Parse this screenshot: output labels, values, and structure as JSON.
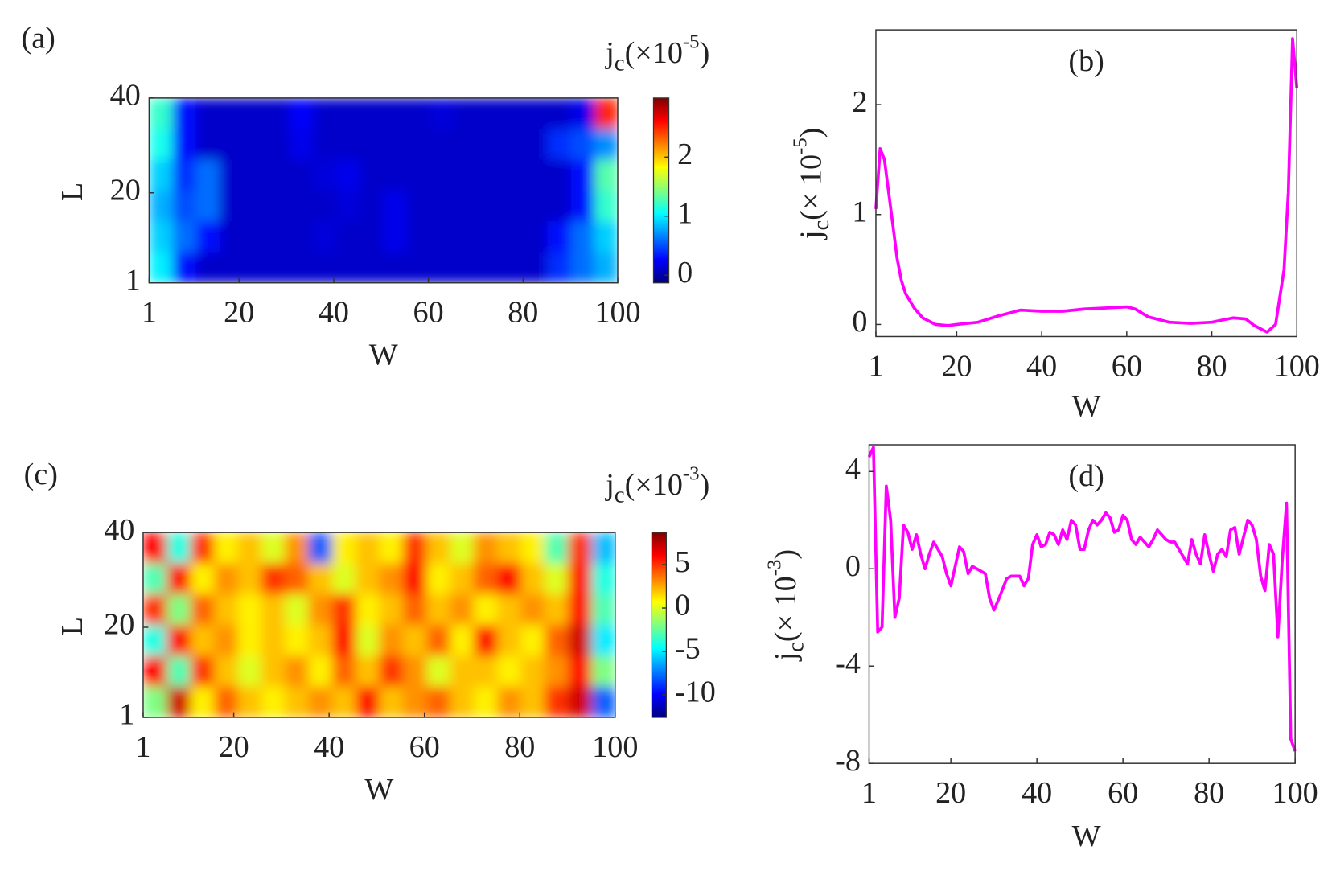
{
  "chart_data": [
    {
      "type": "heatmap",
      "panel_label": "(a)",
      "xlabel": "W",
      "ylabel": "L",
      "colorbar_label": {
        "base": "j",
        "sub": "c",
        "main": "(×10",
        "sup": "-5",
        "end": ")"
      },
      "xlim": [
        1,
        100
      ],
      "xticks": [
        1,
        20,
        40,
        60,
        80,
        100
      ],
      "ylim": [
        1,
        40
      ],
      "yticks": [
        1,
        20,
        40
      ],
      "clim": [
        -0.13,
        3.0
      ],
      "cticks": [
        0,
        1,
        2
      ],
      "colormap": "jet",
      "z": [
        [
          1.2,
          0.3,
          0.1,
          0.1,
          0.1,
          0.1,
          0.25,
          0.1,
          0.1,
          0.1,
          0.1,
          0.1,
          0.15,
          0.1,
          0.1,
          0.1,
          0.1,
          0.1,
          0.2,
          2.5
        ],
        [
          1.1,
          0.3,
          0.1,
          0.1,
          0.1,
          0.1,
          0.2,
          0.1,
          0.1,
          0.1,
          0.1,
          0.1,
          0.1,
          0.1,
          0.1,
          0.1,
          0.1,
          0.4,
          0.5,
          0.7
        ],
        [
          0.9,
          0.4,
          0.6,
          0.1,
          0.1,
          0.1,
          0.1,
          0.15,
          0.2,
          0.1,
          0.1,
          0.1,
          0.1,
          0.1,
          0.1,
          0.1,
          0.1,
          0.1,
          0.3,
          1.3
        ],
        [
          0.8,
          0.5,
          0.6,
          0.1,
          0.1,
          0.1,
          0.1,
          0.1,
          0.15,
          0.1,
          0.2,
          0.1,
          0.1,
          0.1,
          0.1,
          0.1,
          0.1,
          0.1,
          0.3,
          1.2
        ],
        [
          0.9,
          0.6,
          0.3,
          0.1,
          0.1,
          0.1,
          0.1,
          0.15,
          0.1,
          0.1,
          0.2,
          0.1,
          0.1,
          0.1,
          0.1,
          0.1,
          0.1,
          0.3,
          0.6,
          0.9
        ],
        [
          1.0,
          0.3,
          0.1,
          0.1,
          0.1,
          0.1,
          0.1,
          0.1,
          0.1,
          0.1,
          0.1,
          0.1,
          0.1,
          0.1,
          0.1,
          0.1,
          0.1,
          0.4,
          0.6,
          0.8
        ]
      ]
    },
    {
      "type": "line",
      "panel_label": "(b)",
      "xlabel": "W",
      "ylabel": {
        "base": "j",
        "sub": "c",
        "main": "(× 10",
        "sup": "-5",
        "end": ")"
      },
      "xlim": [
        1,
        100
      ],
      "xticks": [
        1,
        20,
        40,
        60,
        80,
        100
      ],
      "ylim": [
        -0.11,
        2.68
      ],
      "yticks": [
        0,
        1,
        2
      ],
      "color": "#ff00ff",
      "x": [
        1,
        2,
        3,
        4,
        5,
        6,
        7,
        8,
        10,
        12,
        15,
        18,
        20,
        25,
        30,
        35,
        40,
        45,
        50,
        55,
        60,
        62,
        65,
        70,
        75,
        80,
        85,
        88,
        90,
        93,
        95,
        97,
        98,
        99,
        100
      ],
      "values": [
        1.05,
        1.6,
        1.5,
        1.2,
        0.9,
        0.6,
        0.4,
        0.28,
        0.15,
        0.06,
        0.0,
        -0.01,
        0.0,
        0.02,
        0.08,
        0.13,
        0.12,
        0.12,
        0.14,
        0.15,
        0.16,
        0.14,
        0.07,
        0.02,
        0.01,
        0.02,
        0.06,
        0.05,
        -0.01,
        -0.07,
        0.0,
        0.5,
        1.2,
        2.6,
        2.15
      ]
    },
    {
      "type": "heatmap",
      "panel_label": "(c)",
      "xlabel": "W",
      "ylabel": "L",
      "colorbar_label": {
        "base": "j",
        "sub": "c",
        "main": "(×10",
        "sup": "-3",
        "end": ")"
      },
      "xlim": [
        1,
        100
      ],
      "xticks": [
        1,
        20,
        40,
        60,
        80,
        100
      ],
      "ylim": [
        1,
        40
      ],
      "yticks": [
        1,
        20,
        40
      ],
      "clim": [
        -12.6,
        8.7
      ],
      "cticks": [
        5,
        0,
        -5,
        -10
      ],
      "colormap": "jet",
      "z": [
        [
          6,
          -4,
          5,
          1,
          2,
          0,
          3,
          -8,
          1,
          2,
          1,
          5,
          2,
          0,
          3,
          2,
          1,
          -3,
          5,
          -6
        ],
        [
          -3,
          6,
          1,
          3,
          2,
          5,
          4,
          2,
          0,
          2,
          3,
          6,
          1,
          2,
          4,
          6,
          2,
          0,
          6,
          -4
        ],
        [
          5,
          -2,
          4,
          2,
          1,
          2,
          0,
          3,
          5,
          1,
          2,
          4,
          2,
          3,
          1,
          2,
          3,
          2,
          6,
          -3
        ],
        [
          -4,
          6,
          2,
          3,
          1,
          2,
          1,
          2,
          6,
          0,
          3,
          2,
          4,
          1,
          6,
          2,
          1,
          4,
          7,
          -5
        ],
        [
          6,
          -3,
          5,
          2,
          0,
          2,
          3,
          1,
          4,
          2,
          5,
          3,
          0,
          2,
          2,
          1,
          2,
          3,
          6,
          -2
        ],
        [
          -2,
          7,
          1,
          4,
          2,
          1,
          2,
          3,
          2,
          6,
          2,
          3,
          4,
          2,
          1,
          3,
          2,
          5,
          7,
          -8
        ]
      ]
    },
    {
      "type": "line",
      "panel_label": "(d)",
      "xlabel": "W",
      "ylabel": {
        "base": "j",
        "sub": "c",
        "main": "(× 10",
        "sup": "-3",
        "end": ")"
      },
      "xlim": [
        1,
        100
      ],
      "xticks": [
        1,
        20,
        40,
        60,
        80,
        100
      ],
      "ylim": [
        -8,
        5.1
      ],
      "yticks": [
        -8,
        -4,
        0,
        4
      ],
      "color": "#ff00ff",
      "x": [
        1,
        2,
        3,
        4,
        5,
        6,
        7,
        8,
        9,
        10,
        11,
        12,
        13,
        14,
        15,
        16,
        17,
        18,
        19,
        20,
        22,
        23,
        24,
        25,
        26,
        28,
        29,
        30,
        31,
        33,
        34,
        36,
        37,
        38,
        39,
        40,
        41,
        42,
        43,
        44,
        45,
        46,
        47,
        48,
        49,
        50,
        51,
        52,
        53,
        54,
        55,
        56,
        57,
        58,
        59,
        60,
        61,
        62,
        63,
        64,
        65,
        66,
        67,
        68,
        69,
        70,
        71,
        72,
        74,
        75,
        76,
        77,
        78,
        79,
        80,
        81,
        82,
        83,
        84,
        85,
        86,
        87,
        88,
        89,
        90,
        91,
        92,
        93,
        94,
        95,
        96,
        97,
        98,
        99,
        100
      ],
      "values": [
        4.6,
        5.0,
        -2.6,
        -2.4,
        3.4,
        2.0,
        -2.0,
        -1.2,
        1.8,
        1.5,
        0.8,
        1.4,
        0.6,
        0.0,
        0.6,
        1.1,
        0.8,
        0.5,
        -0.2,
        -0.7,
        0.9,
        0.7,
        -0.2,
        0.1,
        0.0,
        -0.2,
        -1.2,
        -1.7,
        -1.3,
        -0.4,
        -0.3,
        -0.3,
        -0.7,
        -0.4,
        1.0,
        1.4,
        0.9,
        1.0,
        1.5,
        1.4,
        1.0,
        1.6,
        1.2,
        2.0,
        1.8,
        0.8,
        0.8,
        1.6,
        2.0,
        1.8,
        2.0,
        2.3,
        2.1,
        1.5,
        1.6,
        2.2,
        2.0,
        1.2,
        1.0,
        1.3,
        1.1,
        0.9,
        1.2,
        1.6,
        1.4,
        1.2,
        1.1,
        1.1,
        0.5,
        0.2,
        1.2,
        0.6,
        0.2,
        1.4,
        0.6,
        -0.1,
        0.6,
        0.8,
        0.5,
        1.6,
        1.7,
        0.6,
        1.3,
        2.0,
        1.8,
        1.2,
        -0.3,
        -0.9,
        1.0,
        0.6,
        -2.8,
        0.3,
        2.7,
        -7.0,
        -7.5
      ]
    }
  ]
}
